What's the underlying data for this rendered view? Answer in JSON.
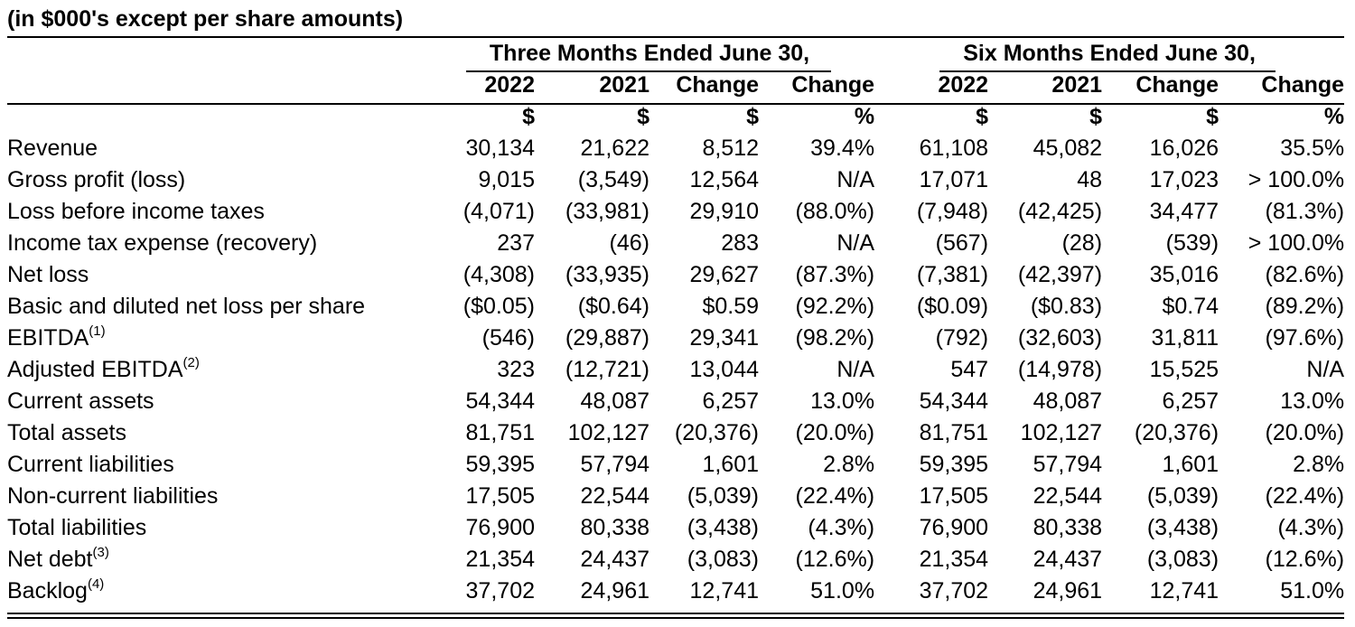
{
  "caption": "(in $000's except per share amounts)",
  "group_headers": [
    "Three Months Ended June 30,",
    "Six Months Ended June 30,"
  ],
  "column_headers": [
    "2022",
    "2021",
    "Change",
    "Change",
    "2022",
    "2021",
    "Change",
    "Change"
  ],
  "unit_headers": [
    "$",
    "$",
    "$",
    "%",
    "$",
    "$",
    "$",
    "%"
  ],
  "rows": [
    {
      "label": "Revenue",
      "note": "",
      "values": [
        "30,134",
        "21,622",
        "8,512",
        "39.4%",
        "61,108",
        "45,082",
        "16,026",
        "35.5%"
      ]
    },
    {
      "label": "Gross profit (loss)",
      "note": "",
      "values": [
        "9,015",
        "(3,549)",
        "12,564",
        "N/A",
        "17,071",
        "48",
        "17,023",
        "> 100.0%"
      ]
    },
    {
      "label": "Loss before income taxes",
      "note": "",
      "values": [
        "(4,071)",
        "(33,981)",
        "29,910",
        "(88.0%)",
        "(7,948)",
        "(42,425)",
        "34,477",
        "(81.3%)"
      ]
    },
    {
      "label": "Income tax expense (recovery)",
      "note": "",
      "values": [
        "237",
        "(46)",
        "283",
        "N/A",
        "(567)",
        "(28)",
        "(539)",
        "> 100.0%"
      ]
    },
    {
      "label": "Net loss",
      "note": "",
      "values": [
        "(4,308)",
        "(33,935)",
        "29,627",
        "(87.3%)",
        "(7,381)",
        "(42,397)",
        "35,016",
        "(82.6%)"
      ]
    },
    {
      "label": "Basic and diluted net loss per share",
      "note": "",
      "values": [
        "($0.05)",
        "($0.64)",
        "$0.59",
        "(92.2%)",
        "($0.09)",
        "($0.83)",
        "$0.74",
        "(89.2%)"
      ]
    },
    {
      "label": "EBITDA",
      "note": "(1)",
      "values": [
        "(546)",
        "(29,887)",
        "29,341",
        "(98.2%)",
        "(792)",
        "(32,603)",
        "31,811",
        "(97.6%)"
      ]
    },
    {
      "label": "Adjusted EBITDA",
      "note": "(2)",
      "values": [
        "323",
        "(12,721)",
        "13,044",
        "N/A",
        "547",
        "(14,978)",
        "15,525",
        "N/A"
      ]
    },
    {
      "label": "Current assets",
      "note": "",
      "values": [
        "54,344",
        "48,087",
        "6,257",
        "13.0%",
        "54,344",
        "48,087",
        "6,257",
        "13.0%"
      ]
    },
    {
      "label": "Total assets",
      "note": "",
      "values": [
        "81,751",
        "102,127",
        "(20,376)",
        "(20.0%)",
        "81,751",
        "102,127",
        "(20,376)",
        "(20.0%)"
      ]
    },
    {
      "label": "Current liabilities",
      "note": "",
      "values": [
        "59,395",
        "57,794",
        "1,601",
        "2.8%",
        "59,395",
        "57,794",
        "1,601",
        "2.8%"
      ]
    },
    {
      "label": "Non-current liabilities",
      "note": "",
      "values": [
        "17,505",
        "22,544",
        "(5,039)",
        "(22.4%)",
        "17,505",
        "22,544",
        "(5,039)",
        "(22.4%)"
      ]
    },
    {
      "label": "Total liabilities",
      "note": "",
      "values": [
        "76,900",
        "80,338",
        "(3,438)",
        "(4.3%)",
        "76,900",
        "80,338",
        "(3,438)",
        "(4.3%)"
      ]
    },
    {
      "label": "Net debt",
      "note": "(3)",
      "values": [
        "21,354",
        "24,437",
        "(3,083)",
        "(12.6%)",
        "21,354",
        "24,437",
        "(3,083)",
        "(12.6%)"
      ]
    },
    {
      "label": "Backlog",
      "note": "(4)",
      "values": [
        "37,702",
        "24,961",
        "12,741",
        "51.0%",
        "37,702",
        "24,961",
        "12,741",
        "51.0%"
      ]
    }
  ]
}
